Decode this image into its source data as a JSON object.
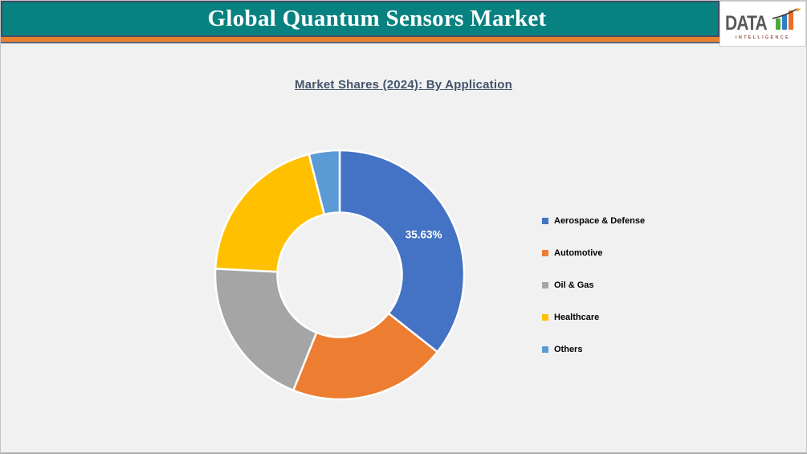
{
  "header": {
    "title": "Global Quantum Sensors Market",
    "banner_color": "#088281",
    "stripe_color": "#E8802F",
    "border_color": "#3F4D63",
    "logo": {
      "word": "DATA",
      "sub": "INTELLIGENCE",
      "word_color": "#58595B",
      "bar_colors": [
        "#4FA83D",
        "#2F7EC2",
        "#F16C24"
      ],
      "arrow_color": "#414042",
      "arrowhead_color": "#F5A33C"
    }
  },
  "chart": {
    "subtitle": "Market Shares (2024): By Application",
    "subtitle_color": "#44546A"
  },
  "chart_data": {
    "type": "pie",
    "donut": true,
    "title": "Market Shares (2024): By Application",
    "year": "2024",
    "grouping": "By Application",
    "start_angle_deg": 0,
    "direction": "clockwise",
    "inner_radius_ratio": 0.5,
    "legend_position": "right",
    "slice_border_color": "#FFFFFF",
    "data_label_color": "#FFFFFF",
    "series": [
      {
        "name": "Aerospace & Defense",
        "value": 35.63,
        "color": "#4472C4",
        "label": "35.63%"
      },
      {
        "name": "Automotive",
        "value": 20.45,
        "color": "#ED7D31",
        "label": null
      },
      {
        "name": "Oil & Gas",
        "value": 19.7,
        "color": "#A5A5A5",
        "label": null
      },
      {
        "name": "Healthcare",
        "value": 20.25,
        "color": "#FFC000",
        "label": null
      },
      {
        "name": "Others",
        "value": 3.97,
        "color": "#5B9BD5",
        "label": null
      }
    ]
  }
}
